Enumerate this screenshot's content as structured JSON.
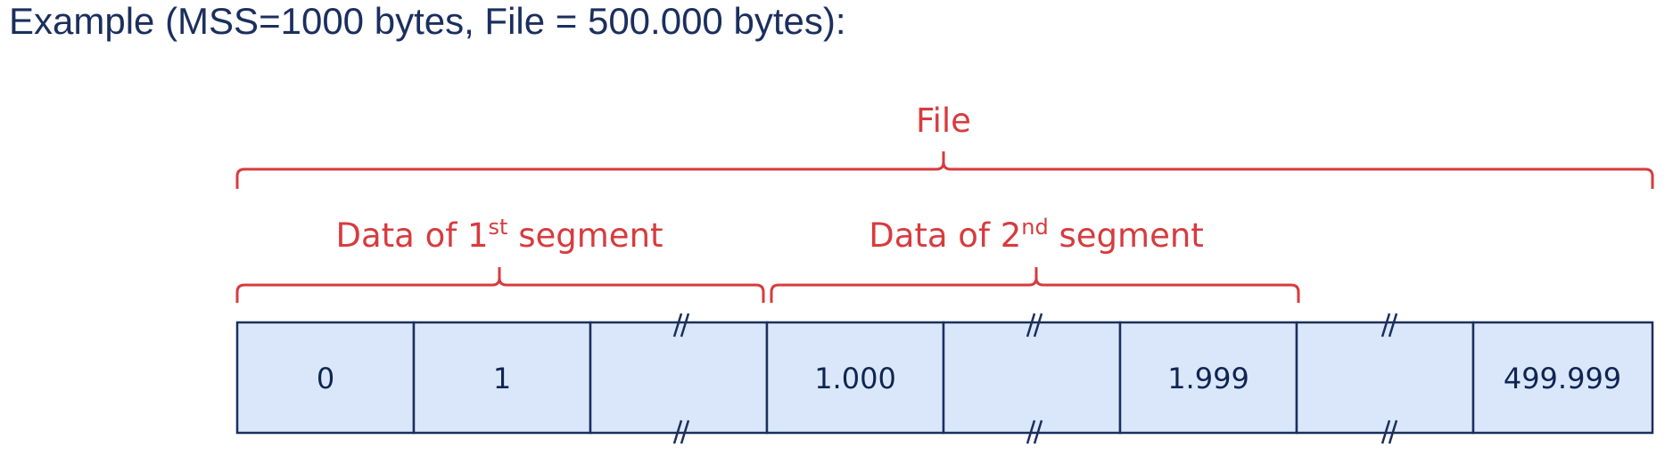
{
  "heading": "Example (MSS=1000 bytes, File = 500.000 bytes):",
  "file_label": "File",
  "segments": [
    {
      "prefix": "Data of 1",
      "sup": "st",
      "suffix": " segment"
    },
    {
      "prefix": "Data of 2",
      "sup": "nd",
      "suffix": " segment"
    }
  ],
  "cells": [
    "0",
    "1",
    "",
    "1.000",
    "",
    "1.999",
    "",
    "499.999"
  ],
  "break_mark": "//",
  "colors": {
    "heading": "#1b2f5e",
    "accent_red": "#d73b3e",
    "cell_fill": "#dae7fa",
    "cell_border": "#1b2f5e"
  }
}
